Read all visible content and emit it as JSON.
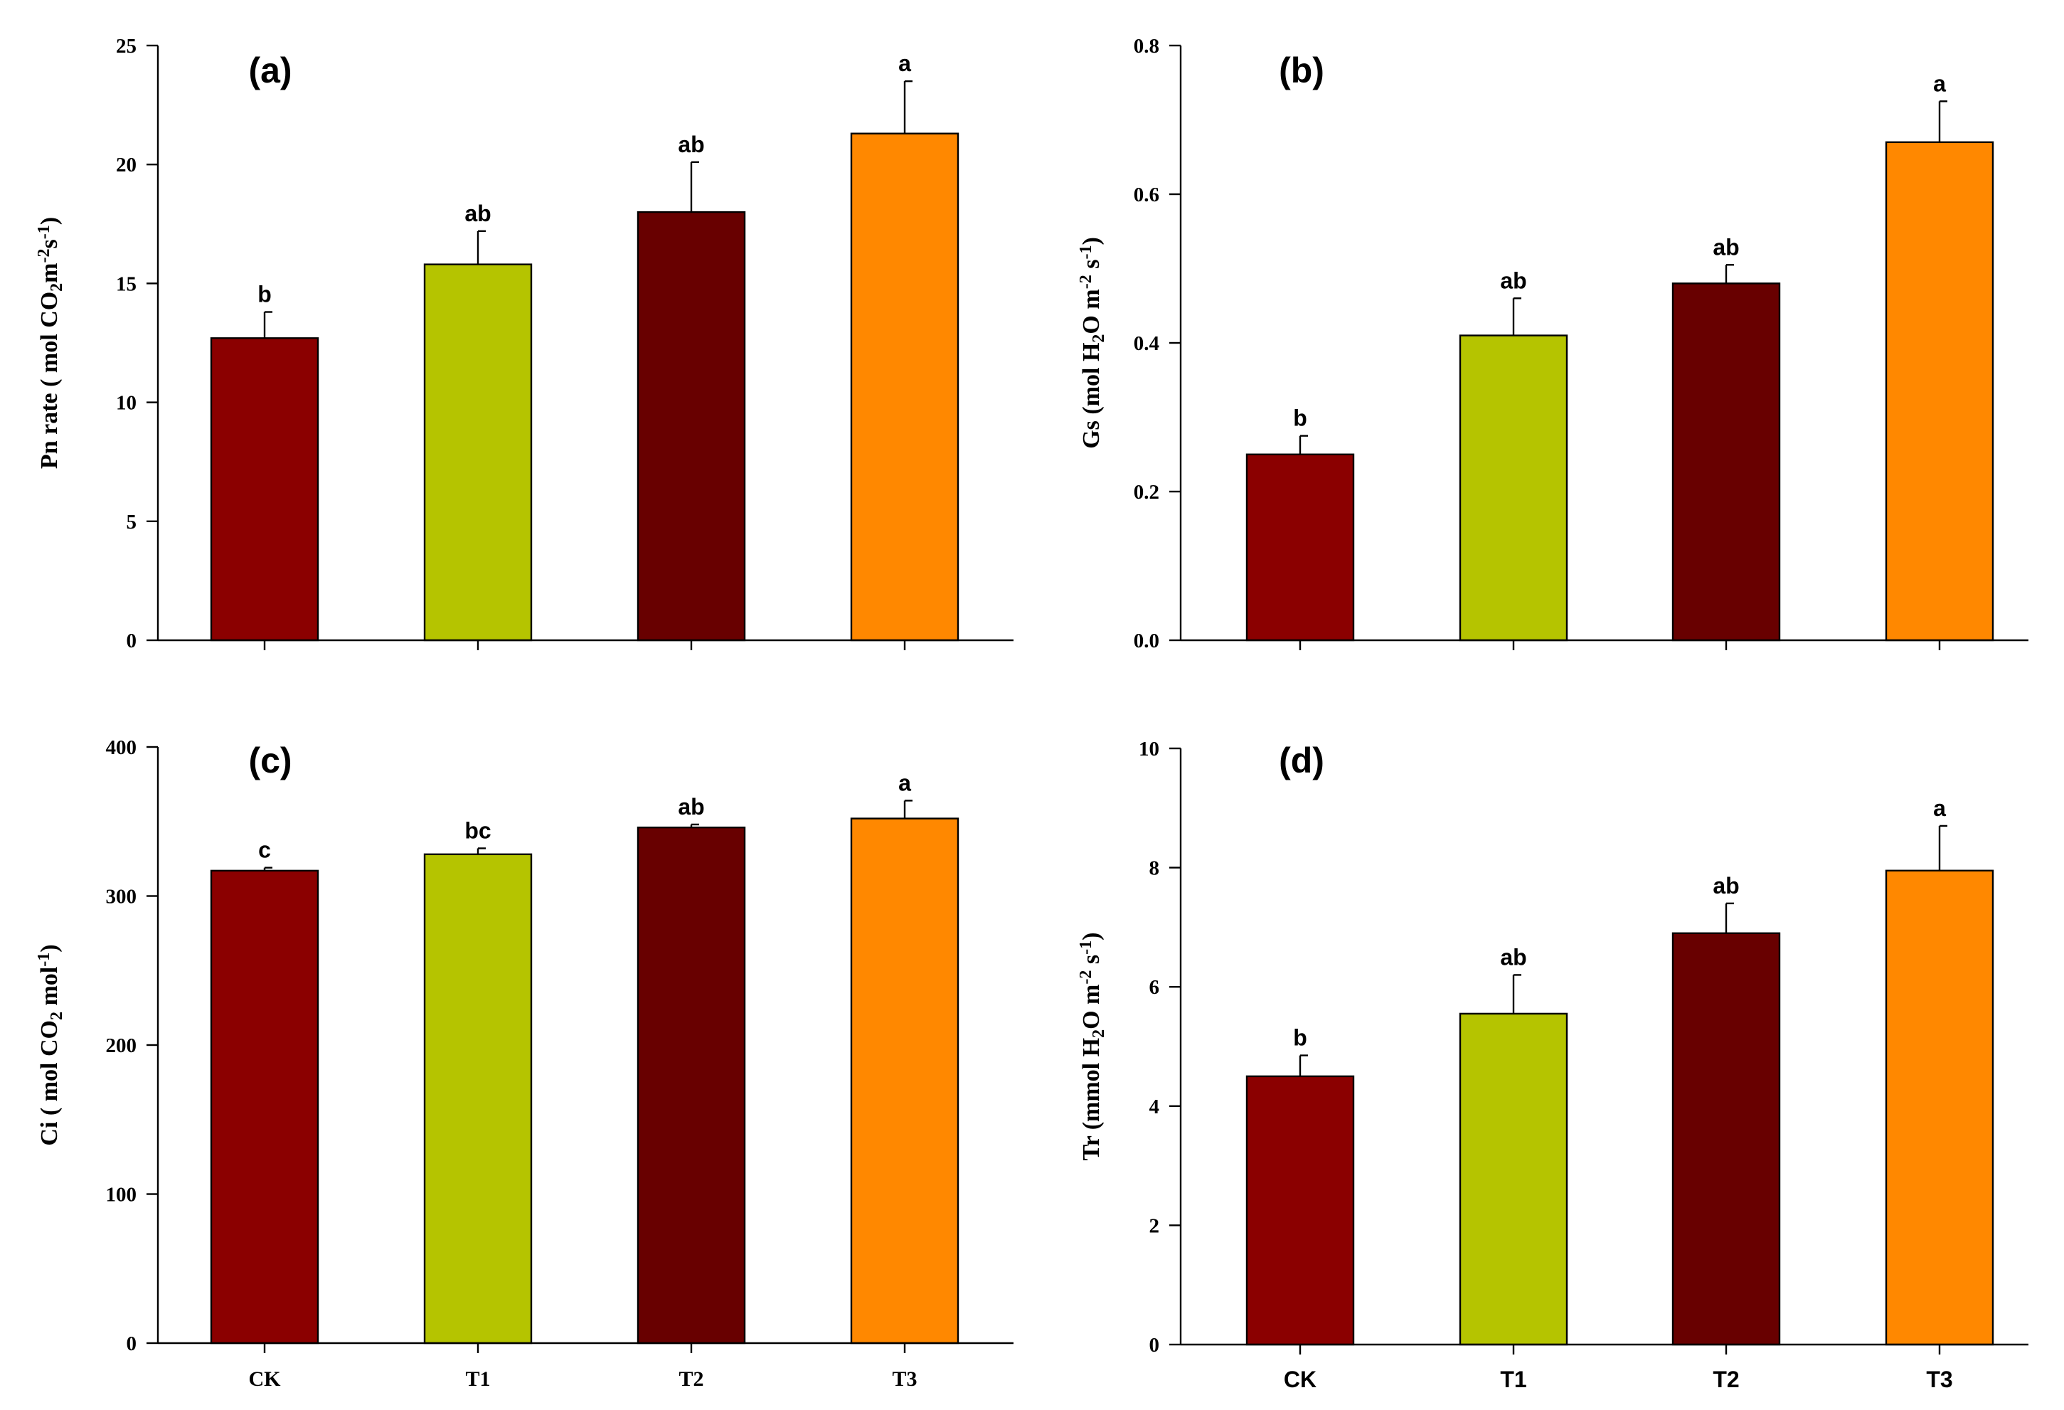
{
  "chart_data": [
    {
      "type": "bar",
      "panel": "(a)",
      "categories": [
        "CK",
        "T1",
        "T2",
        "T3"
      ],
      "values": [
        12.7,
        15.8,
        18.0,
        21.3
      ],
      "errors": [
        1.1,
        1.4,
        2.1,
        2.2
      ],
      "letters": [
        "b",
        "ab",
        "ab",
        "a"
      ],
      "ylabel": "Pn rate ( mol CO2 m-2 s-1)",
      "ylabel_parts": [
        {
          "t": "Pn rate (  mol CO",
          "s": "n"
        },
        {
          "t": "2",
          "s": "sub"
        },
        {
          "t": "m",
          "s": "n"
        },
        {
          "t": "-2",
          "s": "sup"
        },
        {
          "t": "s",
          "s": "n"
        },
        {
          "t": "-1",
          "s": "sup"
        },
        {
          "t": ")",
          "s": "n"
        }
      ],
      "ylim": [
        0,
        25
      ],
      "yticks": [
        0,
        5,
        10,
        15,
        20,
        25
      ],
      "ytick_labels": [
        "0",
        "5",
        "10",
        "15",
        "20",
        "25"
      ],
      "show_xlabels": false,
      "xlabel_style": "serif"
    },
    {
      "type": "bar",
      "panel": "(b)",
      "categories": [
        "CK",
        "T1",
        "T2",
        "T3"
      ],
      "values": [
        0.25,
        0.41,
        0.48,
        0.67
      ],
      "errors": [
        0.025,
        0.05,
        0.025,
        0.055
      ],
      "letters": [
        "b",
        "ab",
        "ab",
        "a"
      ],
      "ylabel": "Gs (mol H2O m-2 s-1)",
      "ylabel_parts": [
        {
          "t": "Gs (mol H",
          "s": "n"
        },
        {
          "t": "2",
          "s": "sub"
        },
        {
          "t": "O m",
          "s": "n"
        },
        {
          "t": "-2",
          "s": "sup"
        },
        {
          "t": " s",
          "s": "n"
        },
        {
          "t": "-1",
          "s": "sup"
        },
        {
          "t": ")",
          "s": "n"
        }
      ],
      "ylim": [
        0,
        0.8
      ],
      "yticks": [
        0,
        0.2,
        0.4,
        0.6,
        0.8
      ],
      "ytick_labels": [
        "0.0",
        "0.2",
        "0.4",
        "0.6",
        "0.8"
      ],
      "show_xlabels": false,
      "xlabel_style": "sans"
    },
    {
      "type": "bar",
      "panel": "(c)",
      "categories": [
        "CK",
        "T1",
        "T2",
        "T3"
      ],
      "values": [
        317,
        328,
        346,
        352
      ],
      "errors": [
        2,
        4,
        2,
        12
      ],
      "letters": [
        "c",
        "bc",
        "ab",
        "a"
      ],
      "ylabel": "Ci ( mol CO2 mol-1)",
      "ylabel_parts": [
        {
          "t": "Ci (  mol CO",
          "s": "n"
        },
        {
          "t": "2",
          "s": "sub"
        },
        {
          "t": " mol",
          "s": "n"
        },
        {
          "t": "-1",
          "s": "sup"
        },
        {
          "t": ")",
          "s": "n"
        }
      ],
      "ylim": [
        0,
        400
      ],
      "yticks": [
        0,
        100,
        200,
        300,
        400
      ],
      "ytick_labels": [
        "0",
        "100",
        "200",
        "300",
        "400"
      ],
      "show_xlabels": true,
      "xlabel_style": "serif"
    },
    {
      "type": "bar",
      "panel": "(d)",
      "categories": [
        "CK",
        "T1",
        "T2",
        "T3"
      ],
      "values": [
        4.5,
        5.55,
        6.9,
        7.95
      ],
      "errors": [
        0.35,
        0.65,
        0.5,
        0.75
      ],
      "letters": [
        "b",
        "ab",
        "ab",
        "a"
      ],
      "ylabel": "Tr (mmol H2O m-2 s-1)",
      "ylabel_parts": [
        {
          "t": "Tr (mmol H",
          "s": "n"
        },
        {
          "t": "2",
          "s": "sub"
        },
        {
          "t": "O m",
          "s": "n"
        },
        {
          "t": "-2",
          "s": "sup"
        },
        {
          "t": " s",
          "s": "n"
        },
        {
          "t": "-1",
          "s": "sup"
        },
        {
          "t": ")",
          "s": "n"
        }
      ],
      "ylim": [
        0,
        10
      ],
      "yticks": [
        0,
        2,
        4,
        6,
        8,
        10
      ],
      "ytick_labels": [
        "0",
        "2",
        "4",
        "6",
        "8",
        "10"
      ],
      "show_xlabels": true,
      "xlabel_style": "sans"
    }
  ],
  "colors": {
    "CK": "#8b0000",
    "T1": "#b5c400",
    "T2": "#680000",
    "T3": "#ff8800"
  }
}
